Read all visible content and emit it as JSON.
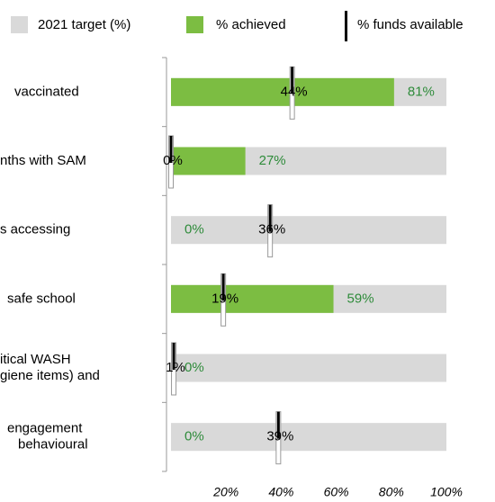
{
  "chart_data": {
    "type": "bar",
    "orientation": "horizontal",
    "categories": [
      [
        "vaccinated"
      ],
      [
        "nths with SAM"
      ],
      [
        "s accessing"
      ],
      [
        "safe school"
      ],
      [
        "itical WASH",
        "giene items) and"
      ],
      [
        "engagement",
        "behavioural"
      ]
    ],
    "series": [
      {
        "name": "2021 target (%)",
        "color": "#d9d9d9",
        "values": [
          100,
          100,
          100,
          100,
          100,
          100
        ]
      },
      {
        "name": "% achieved",
        "color": "#7cbd42",
        "values": [
          81,
          27,
          0,
          59,
          0,
          0
        ],
        "value_labels": [
          "81%",
          "27%",
          "0%",
          "59%",
          "0%",
          "0%"
        ]
      },
      {
        "name": "% funds available",
        "color": "#000000",
        "values": [
          44,
          0,
          36,
          19,
          1,
          39
        ],
        "value_labels": [
          "44%",
          "0%",
          "36%",
          "19%",
          "1%",
          "39%"
        ]
      }
    ],
    "xlim": [
      0,
      100
    ],
    "xticks": [
      {
        "value": 20,
        "label": "20%"
      },
      {
        "value": 40,
        "label": "40%"
      },
      {
        "value": 60,
        "label": "60%"
      },
      {
        "value": 80,
        "label": "80%"
      },
      {
        "value": 100,
        "label": "100%"
      }
    ]
  }
}
